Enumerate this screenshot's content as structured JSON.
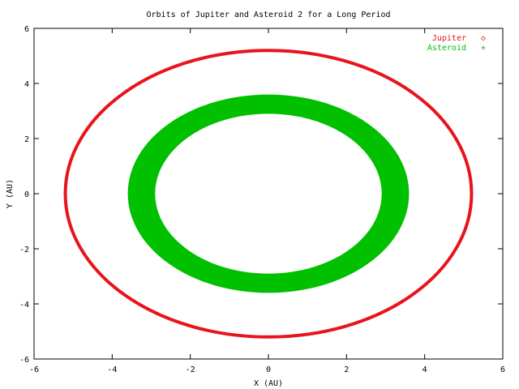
{
  "chart_data": {
    "type": "scatter",
    "title": "Orbits of Jupiter and Asteroid 2 for a Long Period",
    "xlabel": "X (AU)",
    "ylabel": "Y (AU)",
    "xlim": [
      -6,
      6
    ],
    "ylim": [
      -6,
      6
    ],
    "xticks": [
      -6,
      -4,
      -2,
      0,
      2,
      4,
      6
    ],
    "yticks": [
      -6,
      -4,
      -2,
      0,
      2,
      4,
      6
    ],
    "grid": false,
    "legend_position": "top-right",
    "series": [
      {
        "name": "Jupiter",
        "marker": "◇",
        "color": "#e8141c",
        "shape": "ellipse",
        "center": [
          0,
          0
        ],
        "semi_axis_x": 5.2,
        "semi_axis_y": 5.2
      },
      {
        "name": "Asteroid",
        "marker": "+",
        "color": "#00c000",
        "shape": "annulus",
        "center": [
          0,
          0
        ],
        "outer_semi_axis_x": 3.6,
        "outer_semi_axis_y": 3.6,
        "inner_semi_axis_x": 2.9,
        "inner_semi_axis_y": 2.9
      }
    ]
  }
}
